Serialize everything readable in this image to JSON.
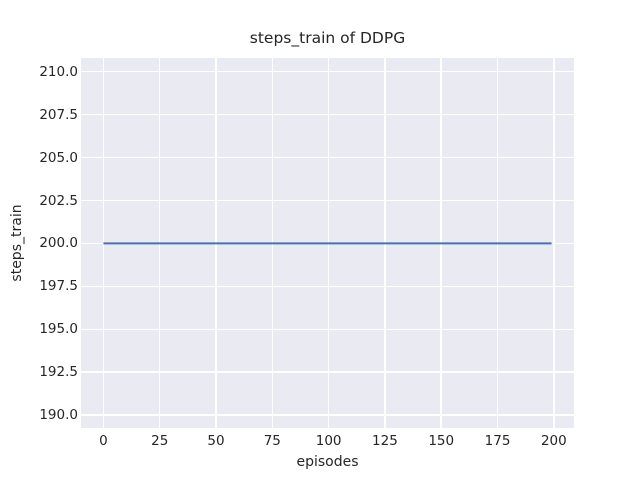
{
  "chart_data": {
    "type": "line",
    "title": "steps_train of DDPG",
    "xlabel": "episodes",
    "ylabel": "steps_train",
    "x_ticks": [
      0,
      25,
      50,
      75,
      100,
      125,
      150,
      175,
      200
    ],
    "y_ticks": [
      190.0,
      192.5,
      195.0,
      197.5,
      200.0,
      202.5,
      205.0,
      207.5,
      210.0
    ],
    "y_tick_labels": [
      "190.0",
      "192.5",
      "195.0",
      "197.5",
      "200.0",
      "202.5",
      "205.0",
      "207.5",
      "210.0"
    ],
    "xlim": [
      -9.95,
      208.95
    ],
    "ylim": [
      189.25,
      210.8
    ],
    "grid": true,
    "legend": "none",
    "series": [
      {
        "name": "steps_train",
        "color": "#4c72b0",
        "points": [
          [
            0,
            200
          ],
          [
            199,
            200
          ]
        ]
      }
    ]
  },
  "style": {
    "figure_background": "#ffffff",
    "axes_background": "#eaeaf2",
    "gridline_color": "#ffffff",
    "text_color": "#262626",
    "line_width": 2
  }
}
